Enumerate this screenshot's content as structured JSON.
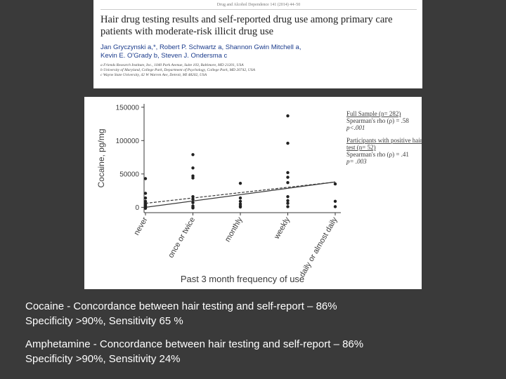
{
  "paper": {
    "journal_ref": "Drug and Alcohol Dependence 141 (2014) 44–50",
    "title": "Hair drug testing results and self-reported drug use among primary care patients with moderate-risk illicit drug use",
    "authors_line1": "Jan Gryczynski a,*, Robert P. Schwartz a, Shannon Gwin Mitchell a,",
    "authors_line2": "Kevin E. O'Grady b, Steven J. Ondersma c",
    "affiliations": [
      "a Friends Research Institute, Inc., 1040 Park Avenue, Suite 103, Baltimore, MD 21201, USA",
      "b University of Maryland, College Park, Department of Psychology, College Park, MD 20742, USA",
      "c Wayne State University, 42 W Warren Ave, Detroit, MI 48202, USA"
    ]
  },
  "chart_data": {
    "type": "scatter",
    "xlabel": "Past 3 month frequency of use",
    "ylabel": "Cocaine, pg/mg",
    "categories": [
      "never",
      "once or twice",
      "monthly",
      "weekly",
      "daily or almost daily"
    ],
    "yticks": [
      0,
      50000,
      100000,
      150000
    ],
    "ytick_labels": [
      "0",
      "50000",
      "100000",
      "150000"
    ],
    "ylim": [
      -8000,
      155000
    ],
    "grid": false,
    "legend_position": "right",
    "points": [
      {
        "x": 0,
        "y": 43000
      },
      {
        "x": 0,
        "y": 21000
      },
      {
        "x": 0,
        "y": 14000
      },
      {
        "x": 0,
        "y": 9000
      },
      {
        "x": 0,
        "y": 6000
      },
      {
        "x": 0,
        "y": 4000
      },
      {
        "x": 0,
        "y": 2500
      },
      {
        "x": 0,
        "y": 1200
      },
      {
        "x": 0,
        "y": 400
      },
      {
        "x": 0,
        "y": 0
      },
      {
        "x": 0,
        "y": -1500
      },
      {
        "x": 1,
        "y": 79000
      },
      {
        "x": 1,
        "y": 59000
      },
      {
        "x": 1,
        "y": 47000
      },
      {
        "x": 1,
        "y": 44000
      },
      {
        "x": 1,
        "y": 16000
      },
      {
        "x": 1,
        "y": 12000
      },
      {
        "x": 1,
        "y": 7000
      },
      {
        "x": 1,
        "y": 2000
      },
      {
        "x": 1,
        "y": 0
      },
      {
        "x": 1,
        "y": -1000
      },
      {
        "x": 2,
        "y": 36000
      },
      {
        "x": 2,
        "y": 14000
      },
      {
        "x": 2,
        "y": 9000
      },
      {
        "x": 2,
        "y": 5000
      },
      {
        "x": 2,
        "y": 2000
      },
      {
        "x": 2,
        "y": 500
      },
      {
        "x": 3,
        "y": 137000
      },
      {
        "x": 3,
        "y": 96000
      },
      {
        "x": 3,
        "y": 52000
      },
      {
        "x": 3,
        "y": 45000
      },
      {
        "x": 3,
        "y": 37000
      },
      {
        "x": 3,
        "y": 16000
      },
      {
        "x": 3,
        "y": 10000
      },
      {
        "x": 3,
        "y": 6000
      },
      {
        "x": 3,
        "y": 1000
      },
      {
        "x": 4,
        "y": 35000
      },
      {
        "x": 4,
        "y": 9000
      },
      {
        "x": 4,
        "y": 1000
      }
    ],
    "trend_lines": [
      {
        "style": "dashed",
        "y_start": 6000,
        "y_end": 38000
      },
      {
        "style": "solid",
        "y_start": 0,
        "y_end": 38000
      }
    ],
    "legend": [
      {
        "heading": "Full Sample (n= 282)",
        "lines": [
          "Spearman's rho (ρ) = .58",
          "p<.001"
        ]
      },
      {
        "heading": "Participants with positive hair test (n= 52)",
        "lines": [
          "Spearman's rho (ρ) = .41",
          "p= .003"
        ]
      }
    ]
  },
  "captions": [
    {
      "line1": "Cocaine - Concordance between hair testing and self-report – 86%",
      "line2": "Specificity  >90%, Sensitivity 65 %"
    },
    {
      "line1": "Amphetamine - Concordance between hair testing and self-report – 86%",
      "line2": "Specificity  >90%, Sensitivity 24%"
    }
  ]
}
